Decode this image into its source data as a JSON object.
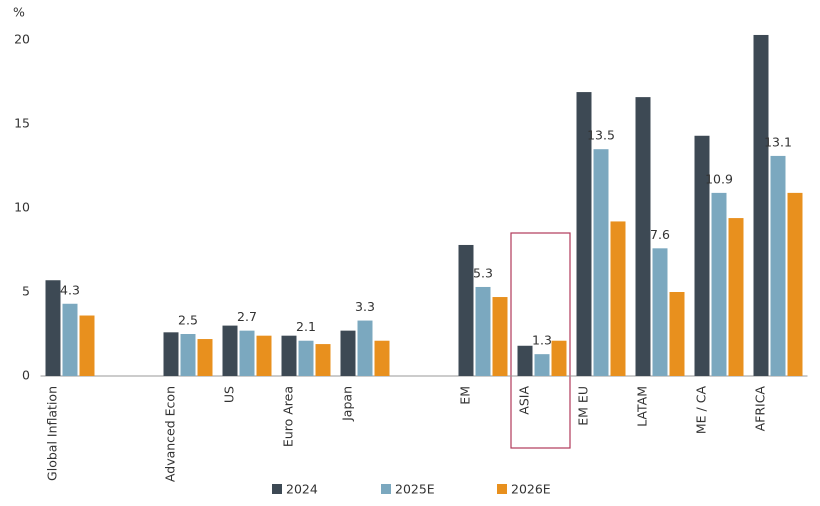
{
  "chart_data": {
    "type": "bar",
    "y_label": "%",
    "categories": [
      "Global Inflation",
      null,
      "Advanced Econ",
      "US",
      "Euro Area",
      "Japan",
      null,
      "EM",
      "ASIA",
      "EM EU",
      "LATAM",
      "ME / CA",
      "AFRICA"
    ],
    "series": [
      {
        "name": "2024",
        "color": "#3d4954",
        "values": [
          5.7,
          null,
          2.6,
          3.0,
          2.4,
          2.7,
          null,
          7.8,
          1.8,
          16.9,
          16.6,
          14.3,
          20.3
        ]
      },
      {
        "name": "2025E",
        "color": "#7ba8bf",
        "labels": true,
        "values": [
          4.3,
          null,
          2.5,
          2.7,
          2.1,
          3.3,
          null,
          5.3,
          1.3,
          13.5,
          7.6,
          10.9,
          13.1
        ]
      },
      {
        "name": "2026E",
        "color": "#e8901e",
        "values": [
          3.6,
          null,
          2.2,
          2.4,
          1.9,
          2.1,
          null,
          4.7,
          2.1,
          9.2,
          5.0,
          9.4,
          10.9
        ]
      }
    ],
    "ylim": [
      0,
      20
    ],
    "yticks": [
      0,
      5,
      10,
      15,
      20
    ],
    "grid": false
  }
}
